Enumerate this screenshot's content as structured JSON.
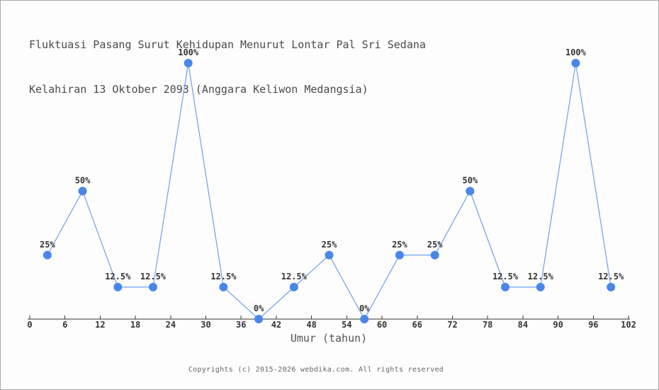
{
  "chart_data": {
    "type": "line",
    "title": "Fluktuasi Pasang Surut Kehidupan Menurut Lontar Pal Sri Sedana Kelahiran 13 Oktober 2093 (Anggara Keliwon Medangsia)",
    "title_lines": [
      "Fluktuasi Pasang Surut Kehidupan Menurut Lontar Pal Sri Sedana",
      "Kelahiran 13 Oktober 2093 (Anggara Keliwon Medangsia)"
    ],
    "xlabel": "Umur (tahun)",
    "ylabel": "",
    "x": [
      3,
      9,
      15,
      21,
      27,
      33,
      39,
      45,
      51,
      57,
      63,
      69,
      75,
      81,
      87,
      93,
      99
    ],
    "values": [
      25,
      50,
      12.5,
      12.5,
      100,
      12.5,
      0,
      12.5,
      25,
      0,
      25,
      25,
      50,
      12.5,
      12.5,
      100,
      12.5
    ],
    "point_labels": [
      "25%",
      "50%",
      "12.5%",
      "12.5%",
      "100%",
      "12.5%",
      "0%",
      "12.5%",
      "25%",
      "0%",
      "25%",
      "25%",
      "50%",
      "12.5%",
      "12.5%",
      "100%",
      "12.5%"
    ],
    "x_ticks": [
      0,
      6,
      12,
      18,
      24,
      30,
      36,
      42,
      48,
      54,
      60,
      66,
      72,
      78,
      84,
      90,
      96,
      102
    ],
    "xlim": [
      0,
      102
    ],
    "ylim": [
      0,
      100
    ],
    "grid": false,
    "legend": "none",
    "marker_color": "#4a86e8",
    "line_color": "#6d9eeb",
    "axis_color": "#333333",
    "tick_label_color": "#333333",
    "point_label_color": "#333333",
    "title_color": "#4a4a4a"
  },
  "footer": {
    "copyright": "Copyrights (c) 2015-2026 webdika.com. All rights reserved"
  }
}
